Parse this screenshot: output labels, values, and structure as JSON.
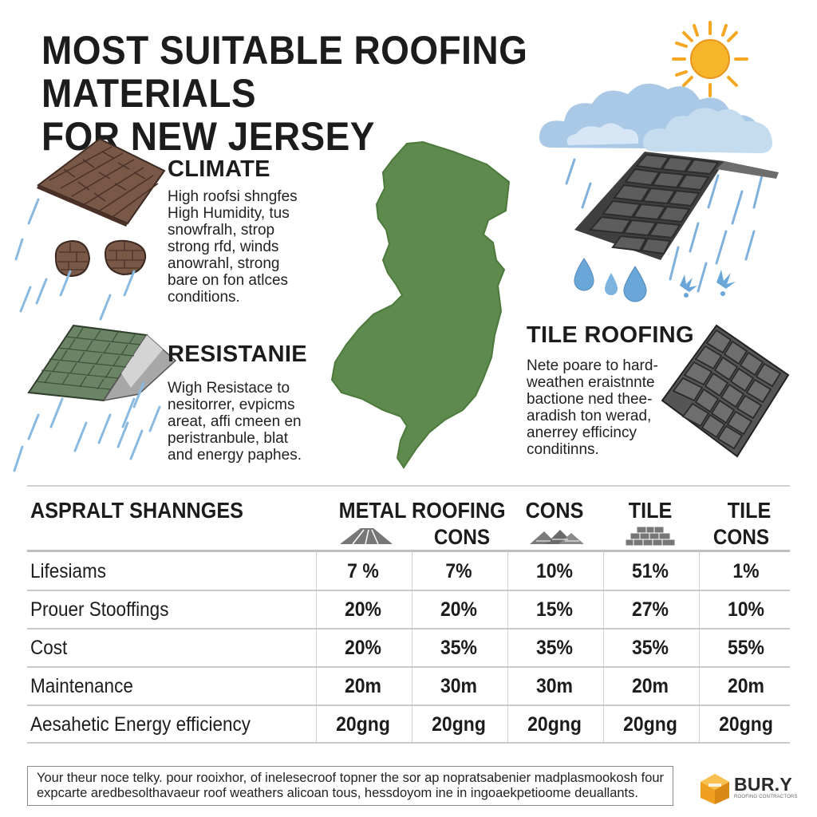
{
  "title": "MOST SUITABLE ROOFING MATERIALS\nFOR NEW JERSEY",
  "sections": {
    "climate": {
      "heading": "CLIMATE",
      "text": "High roofsi shngfes\nHigh Humidity, tus\nsnowfralh, strop\nstrong rfd, winds\nanowrahl, strong\nbare on fon atlces\nconditions."
    },
    "resistance": {
      "heading": "RESISTANIE",
      "text": "Wigh Resistace to\nnesitorrer, evpicms\nareat, affi cmeen en\nperistranbule, blat\nand energy paphes."
    },
    "tile": {
      "heading": "TILE ROOFING",
      "text": "Nete poare to hard-\nweathen eraistnnte\nbactione ned thee-\naradish ton werad,\nanerrey efficincy\nconditinns."
    }
  },
  "table": {
    "headers": [
      {
        "label": "ASPRALT SHANNGES",
        "sub": ""
      },
      {
        "label": "METAL ROOFING",
        "sub": "CONS"
      },
      {
        "label": "CONS",
        "sub": ""
      },
      {
        "label": "TILE",
        "sub": ""
      },
      {
        "label": "TILE",
        "sub": "CONS"
      }
    ],
    "rows": [
      {
        "label": "Lifesiams",
        "values": [
          "7 %",
          "7%",
          "10%",
          "51%",
          "1%"
        ]
      },
      {
        "label": "Prouer Stooffings",
        "values": [
          "20%",
          "20%",
          "15%",
          "27%",
          "10%"
        ]
      },
      {
        "label": "Cost",
        "values": [
          "20%",
          "35%",
          "35%",
          "35%",
          "55%"
        ]
      },
      {
        "label": "Maintenance",
        "values": [
          "20m",
          "30m",
          "30m",
          "20m",
          "20m"
        ]
      },
      {
        "label": "Aesahetic Energy efficiency",
        "values": [
          "20gng",
          "20gng",
          "20gng",
          "20gng",
          "20gng"
        ]
      }
    ]
  },
  "footer": {
    "text": "Your theur noce telky. pour rooixhor, of inelesecroof topner the sor ap nopratsabenier madplasmookosh four expcarte aredbesolthavaeur roof weathers alicoan tous, hessdoyom ine in ingoaekpetioome deuallants."
  },
  "brand": {
    "name": "BUR.Y",
    "tagline": "ROOFING CONTRACTORS"
  },
  "colors": {
    "map_green": "#5e8b4d",
    "sun": "#f5a623",
    "cloud": "#9fc3e2",
    "rain": "#6aa6d8",
    "brick": "#7a5a4a",
    "slate": "#5a5a5a",
    "green_shingle": "#6b8466"
  },
  "icons": [
    "sun-icon",
    "cloud-icon",
    "rain-drop-icon",
    "brick-roof-icon",
    "green-shingle-roof-icon",
    "slate-roof-icon",
    "tile-roof-icon",
    "new-jersey-map-icon",
    "brand-logo-icon"
  ]
}
